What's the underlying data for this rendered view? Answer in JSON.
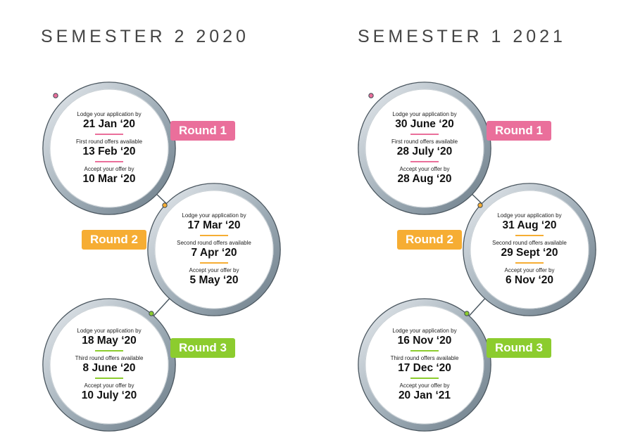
{
  "colors": {
    "round1": "#ea6f9b",
    "round2": "#f6ad33",
    "round3": "#8ccc2e"
  },
  "semesters": [
    {
      "title": "SEMESTER 2 2020",
      "rounds": [
        {
          "tag": "Round 1",
          "items": [
            {
              "label": "Lodge your application by",
              "date": "21 Jan ‘20"
            },
            {
              "label": "First round offers available",
              "date": "13 Feb ‘20"
            },
            {
              "label": "Accept your offer by",
              "date": "10 Mar ‘20"
            }
          ]
        },
        {
          "tag": "Round 2",
          "items": [
            {
              "label": "Lodge your application by",
              "date": "17 Mar ‘20"
            },
            {
              "label": "Second round offers available",
              "date": "7 Apr ‘20"
            },
            {
              "label": "Accept your offer by",
              "date": "5 May ‘20"
            }
          ]
        },
        {
          "tag": "Round 3",
          "items": [
            {
              "label": "Lodge your application by",
              "date": "18 May ‘20"
            },
            {
              "label": "Third round offers available",
              "date": "8 June ‘20"
            },
            {
              "label": "Accept your offer by",
              "date": "10 July ‘20"
            }
          ]
        }
      ]
    },
    {
      "title": "SEMESTER 1 2021",
      "rounds": [
        {
          "tag": "Round 1",
          "items": [
            {
              "label": "Lodge your application by",
              "date": "30 June ‘20"
            },
            {
              "label": "First round offers available",
              "date": "28 July ‘20"
            },
            {
              "label": "Accept your offer by",
              "date": "28 Aug ‘20"
            }
          ]
        },
        {
          "tag": "Round 2",
          "items": [
            {
              "label": "Lodge your application by",
              "date": "31 Aug ‘20"
            },
            {
              "label": "Second round offers available",
              "date": "29 Sept ‘20"
            },
            {
              "label": "Accept your offer by",
              "date": "6 Nov ‘20"
            }
          ]
        },
        {
          "tag": "Round 3",
          "items": [
            {
              "label": "Lodge your application by",
              "date": "16 Nov ‘20"
            },
            {
              "label": "Third round offers available",
              "date": "17 Dec ‘20"
            },
            {
              "label": "Accept your offer by",
              "date": "20 Jan ‘21"
            }
          ]
        }
      ]
    }
  ]
}
